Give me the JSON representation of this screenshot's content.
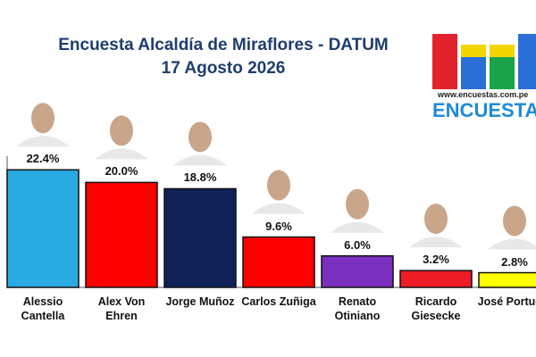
{
  "chart_data": {
    "type": "bar",
    "title": "Encuesta Alcaldía de Miraflores - DATUM",
    "subtitle": "17 Agosto 2026",
    "annotations": [
      "www.encuestas.com.pe",
      "ENCUESTAS"
    ],
    "categories": [
      "Alessio Cantella",
      "Alex Von Ehren",
      "Jorge Muñoz",
      "Carlos Zuñiga",
      "Renato Otiniano",
      "Ricardo Giesecke",
      "José Portugal"
    ],
    "values": [
      22.4,
      20.0,
      18.8,
      9.6,
      6.0,
      3.2,
      2.8
    ],
    "value_labels": [
      "22.4%",
      "20.0%",
      "18.8%",
      "9.6%",
      "6.0%",
      "3.2%",
      "2.8%"
    ],
    "colors": [
      "#29abe2",
      "#ff0000",
      "#0f2156",
      "#ff0000",
      "#7a2fbf",
      "#ee1c25",
      "#ffff00"
    ],
    "ylim": [
      0,
      25
    ]
  }
}
